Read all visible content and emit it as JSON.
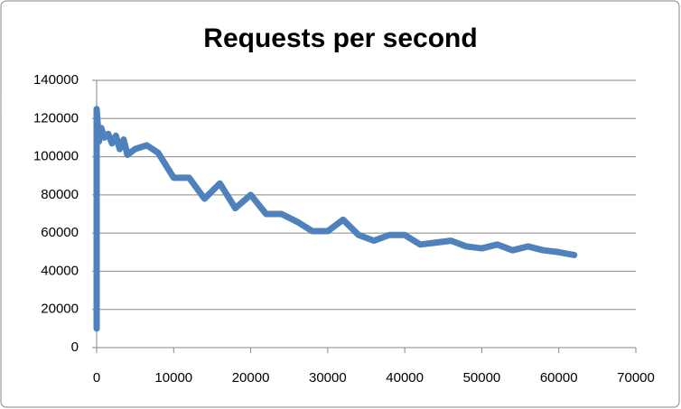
{
  "chart_data": {
    "type": "line",
    "title": "Requests per second",
    "x": [
      0,
      0,
      300,
      600,
      1000,
      1500,
      2000,
      2500,
      3000,
      3500,
      4000,
      5000,
      6500,
      8000,
      10000,
      12000,
      14000,
      16000,
      18000,
      20000,
      22000,
      24000,
      26000,
      28000,
      30000,
      32000,
      34000,
      36000,
      38000,
      40000,
      42000,
      44000,
      46000,
      48000,
      50000,
      52000,
      54000,
      56000,
      58000,
      60000,
      62000
    ],
    "values": [
      10000,
      125000,
      108000,
      115000,
      110000,
      112000,
      107000,
      111000,
      104000,
      109000,
      101000,
      104000,
      106000,
      102000,
      89000,
      89000,
      78000,
      86000,
      73000,
      80000,
      70000,
      70000,
      66000,
      61000,
      61000,
      67000,
      59000,
      56000,
      59000,
      59000,
      54000,
      55000,
      56000,
      53000,
      52000,
      54000,
      51000,
      53000,
      51000,
      50000,
      48500
    ],
    "color": "#4f81bd",
    "xlim": [
      0,
      70000
    ],
    "xticks": [
      0,
      10000,
      20000,
      30000,
      40000,
      50000,
      60000,
      70000
    ],
    "ylim": [
      0,
      140000
    ],
    "yticks": [
      0,
      20000,
      40000,
      60000,
      80000,
      100000,
      120000,
      140000
    ],
    "grid": true
  }
}
